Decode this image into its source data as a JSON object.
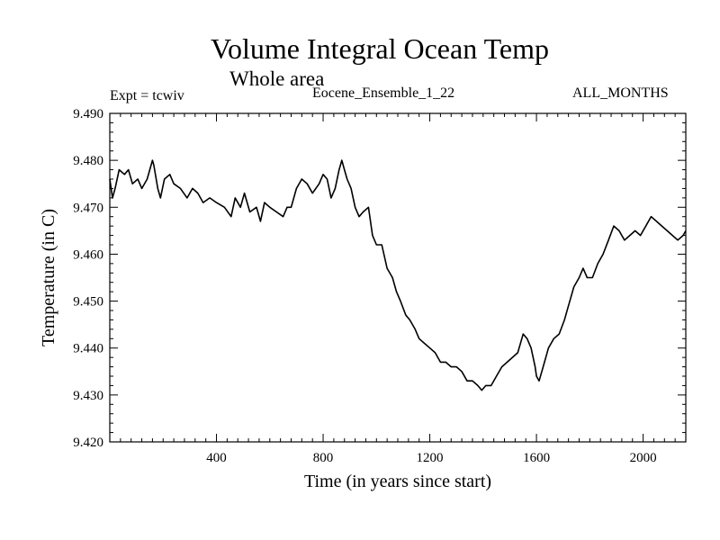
{
  "header": {
    "title": "Volume Integral Ocean Temp",
    "subtitle": "Whole area",
    "expt_label": "Expt = tcwiv",
    "ensemble_label": "Eocene_Ensemble_1_22",
    "months_label": "ALL_MONTHS"
  },
  "chart_data": {
    "type": "line",
    "title": "Volume Integral Ocean Temp",
    "subtitle": "Whole area",
    "xlabel": "Time (in years since start)",
    "ylabel": "Temperature (in C)",
    "xlim": [
      0,
      2160
    ],
    "ylim": [
      9.42,
      9.49
    ],
    "x_ticks": [
      400,
      800,
      1200,
      1600,
      2000
    ],
    "x_tick_labels": [
      "400",
      "800",
      "1200",
      "1600",
      "2000"
    ],
    "y_ticks": [
      9.42,
      9.43,
      9.44,
      9.45,
      9.46,
      9.47,
      9.48,
      9.49
    ],
    "y_tick_labels": [
      "9.420",
      "9.430",
      "9.440",
      "9.450",
      "9.460",
      "9.470",
      "9.480",
      "9.490"
    ],
    "grid": false,
    "line_color": "#000000",
    "series": [
      {
        "x": [
          0,
          10,
          20,
          35,
          55,
          70,
          85,
          105,
          120,
          140,
          160,
          165,
          180,
          190,
          205,
          225,
          240,
          265,
          290,
          310,
          330,
          350,
          375,
          400,
          430,
          455,
          470,
          490,
          505,
          525,
          550,
          565,
          580,
          600,
          625,
          650,
          665,
          680,
          700,
          720,
          740,
          760,
          785,
          800,
          815,
          830,
          845,
          860,
          870,
          880,
          890,
          905,
          920,
          935,
          950,
          970,
          985,
          1000,
          1020,
          1040,
          1060,
          1075,
          1090,
          1110,
          1125,
          1145,
          1160,
          1180,
          1200,
          1220,
          1240,
          1260,
          1280,
          1300,
          1320,
          1340,
          1360,
          1380,
          1395,
          1410,
          1430,
          1450,
          1470,
          1490,
          1510,
          1530,
          1550,
          1565,
          1580,
          1595,
          1600,
          1610,
          1625,
          1645,
          1665,
          1685,
          1705,
          1720,
          1740,
          1760,
          1775,
          1790,
          1810,
          1830,
          1850,
          1870,
          1890,
          1910,
          1930,
          1950,
          1970,
          1990,
          2010,
          2030,
          2050,
          2070,
          2090,
          2110,
          2130,
          2150,
          2160
        ],
        "y": [
          9.476,
          9.472,
          9.474,
          9.478,
          9.477,
          9.478,
          9.475,
          9.476,
          9.474,
          9.476,
          9.48,
          9.479,
          9.474,
          9.472,
          9.476,
          9.477,
          9.475,
          9.474,
          9.472,
          9.474,
          9.473,
          9.471,
          9.472,
          9.471,
          9.47,
          9.468,
          9.472,
          9.47,
          9.473,
          9.469,
          9.47,
          9.467,
          9.471,
          9.47,
          9.469,
          9.468,
          9.47,
          9.47,
          9.474,
          9.476,
          9.475,
          9.473,
          9.475,
          9.477,
          9.476,
          9.472,
          9.474,
          9.478,
          9.48,
          9.478,
          9.476,
          9.474,
          9.47,
          9.468,
          9.469,
          9.47,
          9.464,
          9.462,
          9.462,
          9.457,
          9.455,
          9.452,
          9.45,
          9.447,
          9.446,
          9.444,
          9.442,
          9.441,
          9.44,
          9.439,
          9.437,
          9.437,
          9.436,
          9.436,
          9.435,
          9.433,
          9.433,
          9.432,
          9.431,
          9.432,
          9.432,
          9.434,
          9.436,
          9.437,
          9.438,
          9.439,
          9.443,
          9.442,
          9.44,
          9.436,
          9.434,
          9.433,
          9.436,
          9.44,
          9.442,
          9.443,
          9.446,
          9.449,
          9.453,
          9.455,
          9.457,
          9.455,
          9.455,
          9.458,
          9.46,
          9.463,
          9.466,
          9.465,
          9.463,
          9.464,
          9.465,
          9.464,
          9.466,
          9.468,
          9.467,
          9.466,
          9.465,
          9.464,
          9.463,
          9.464,
          9.465
        ]
      }
    ]
  }
}
